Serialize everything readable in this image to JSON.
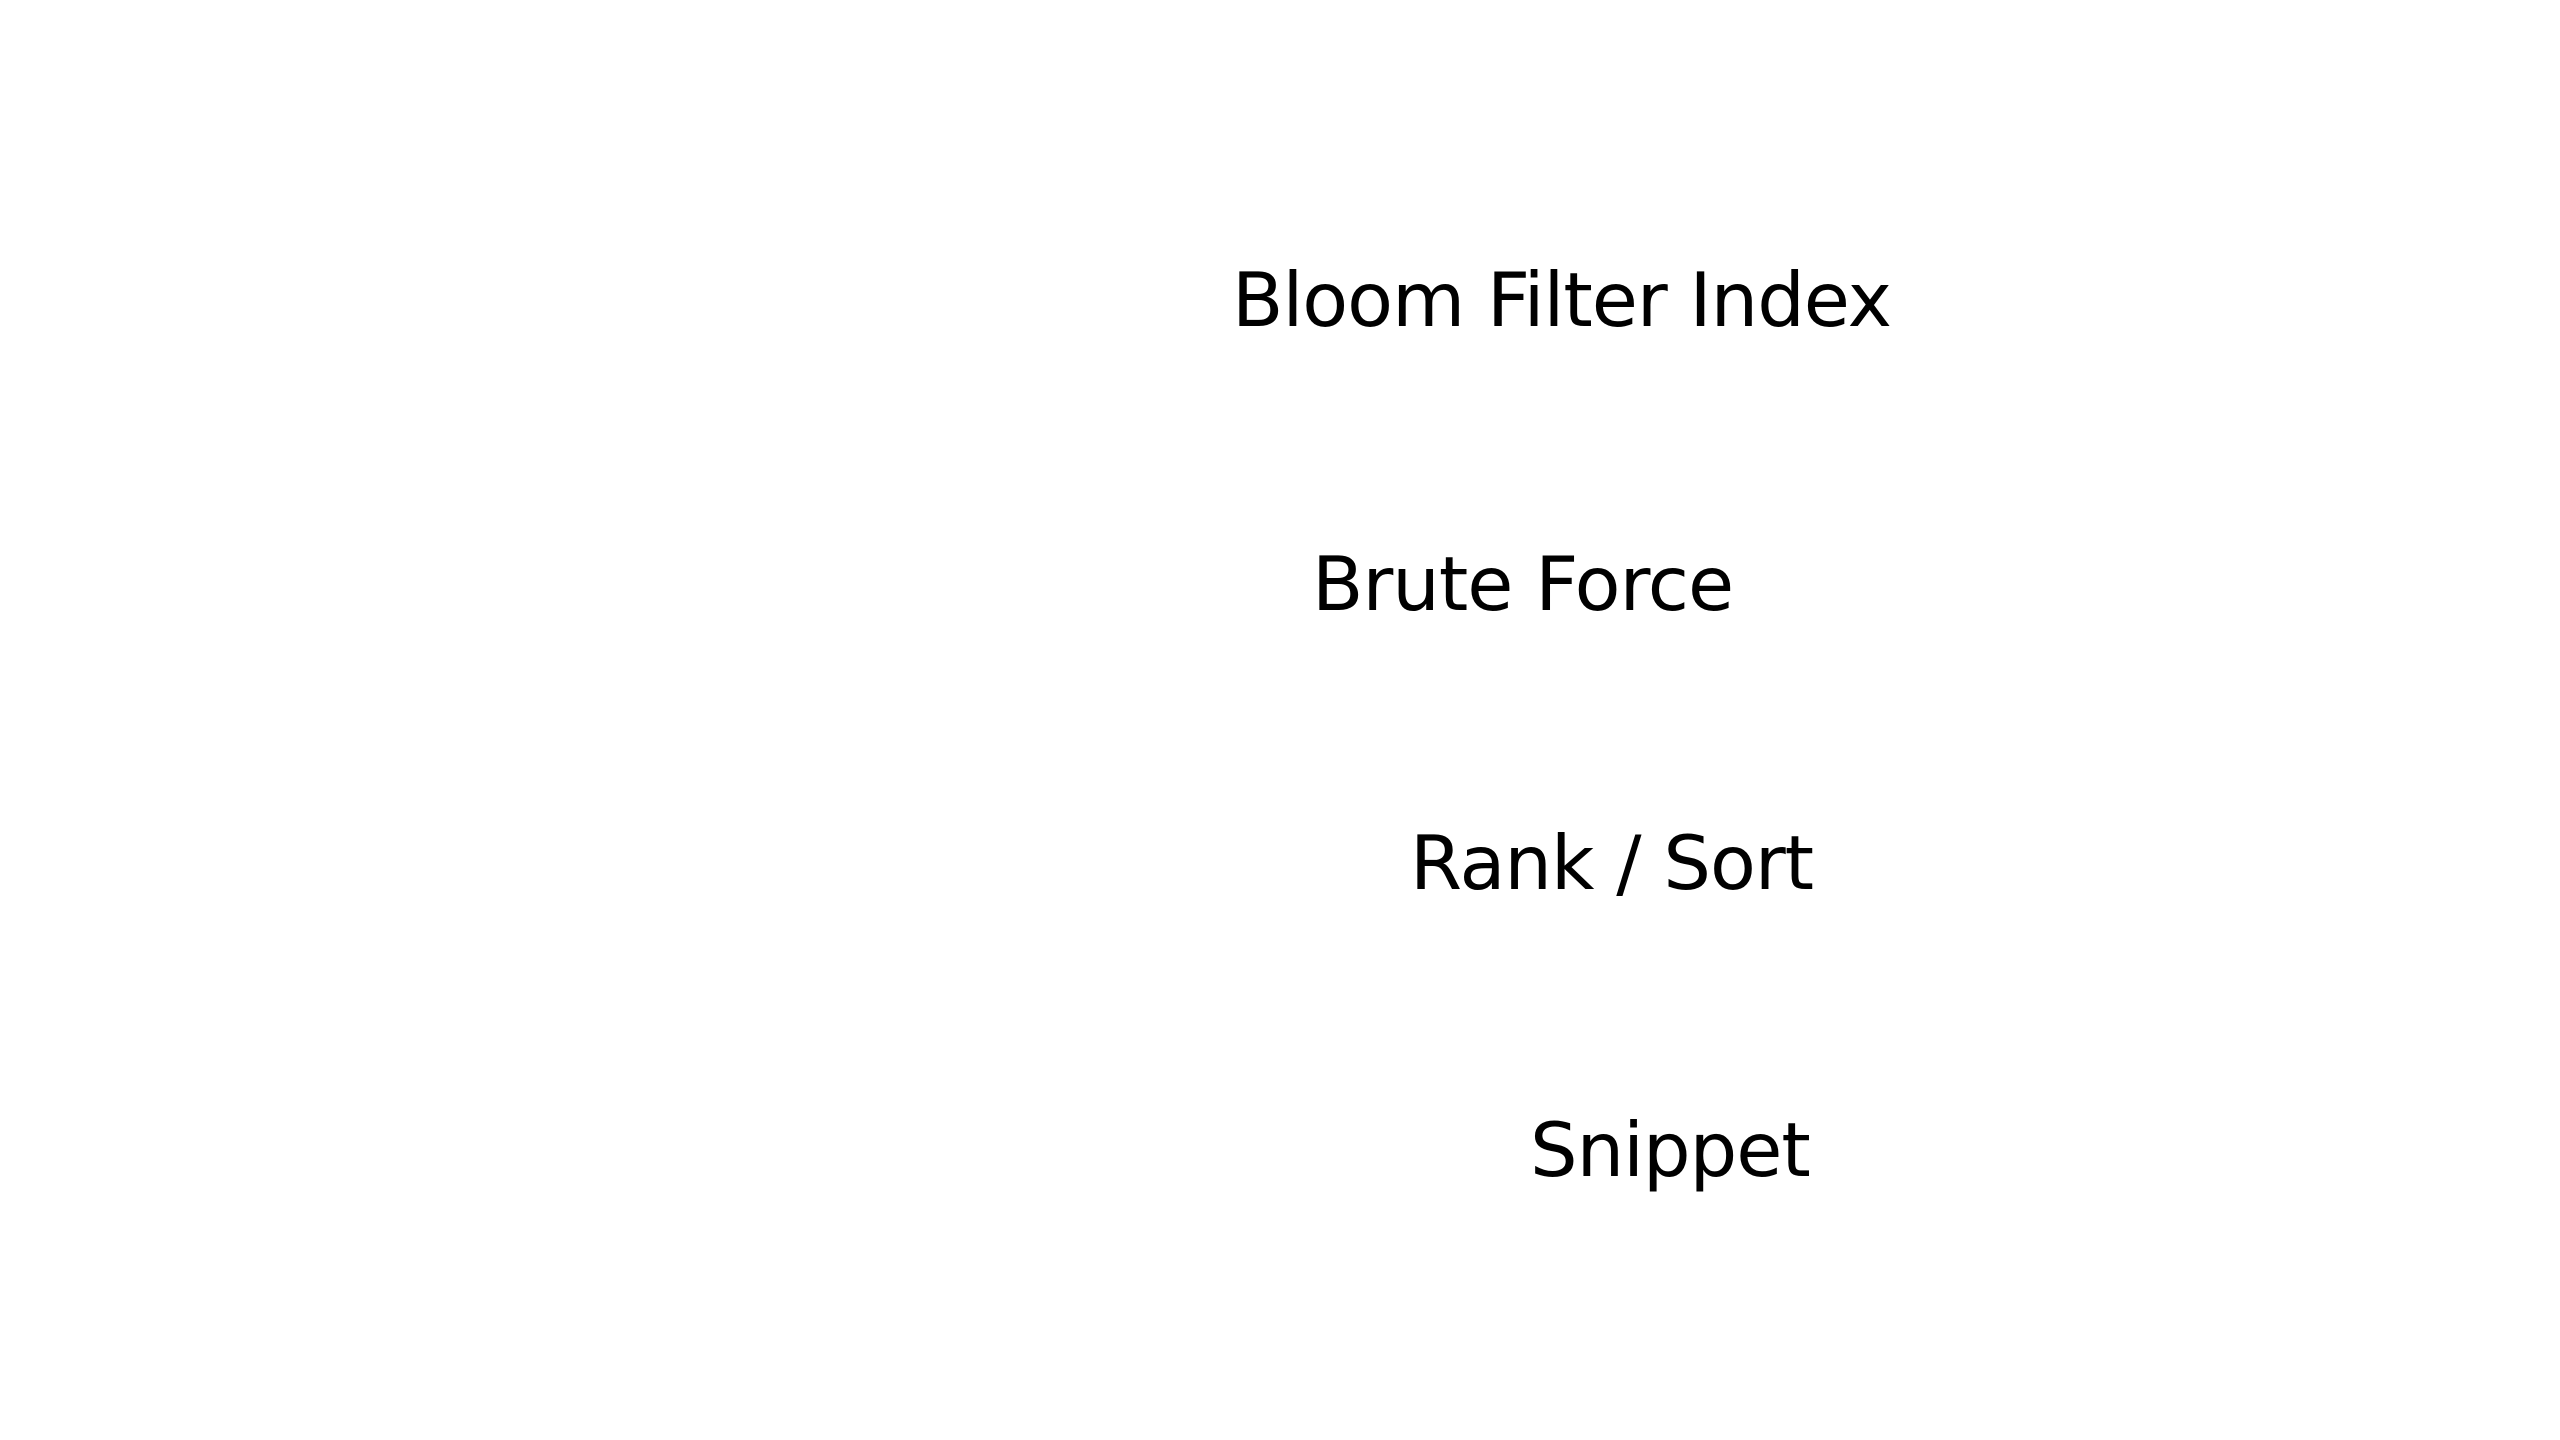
{
  "slide": {
    "items": [
      {
        "label": "Bloom Filter Index"
      },
      {
        "label": "Brute Force"
      },
      {
        "label": "Rank / Sort"
      },
      {
        "label": "Snippet"
      }
    ]
  },
  "colors": {
    "background": "#ffffff",
    "text": "#000000"
  }
}
